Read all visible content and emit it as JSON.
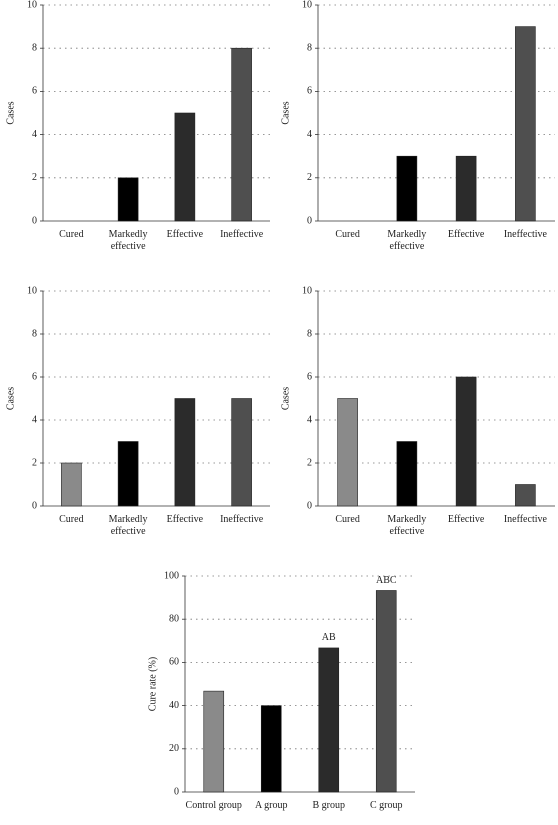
{
  "chart_data": [
    {
      "type": "bar",
      "ylabel": "Cases",
      "categories": [
        "Cured",
        "Markedly effective",
        "Effective",
        "Ineffective"
      ],
      "values": [
        0,
        2,
        5,
        8
      ],
      "colors": [
        "#8a8a8a",
        "#000000",
        "#2b2b2b",
        "#4f4f4f"
      ],
      "ylim": [
        0,
        10
      ],
      "yticks": [
        0,
        2,
        4,
        6,
        8,
        10
      ],
      "grid": true
    },
    {
      "type": "bar",
      "ylabel": "Cases",
      "categories": [
        "Cured",
        "Markedly effective",
        "Effective",
        "Ineffective"
      ],
      "values": [
        0,
        3,
        3,
        9
      ],
      "colors": [
        "#8a8a8a",
        "#000000",
        "#2b2b2b",
        "#4f4f4f"
      ],
      "ylim": [
        0,
        10
      ],
      "yticks": [
        0,
        2,
        4,
        6,
        8,
        10
      ],
      "grid": true
    },
    {
      "type": "bar",
      "ylabel": "Cases",
      "categories": [
        "Cured",
        "Markedly effective",
        "Effective",
        "Ineffective"
      ],
      "values": [
        2,
        3,
        5,
        5
      ],
      "colors": [
        "#8a8a8a",
        "#000000",
        "#2b2b2b",
        "#4f4f4f"
      ],
      "ylim": [
        0,
        10
      ],
      "yticks": [
        0,
        2,
        4,
        6,
        8,
        10
      ],
      "grid": true
    },
    {
      "type": "bar",
      "ylabel": "Cases",
      "categories": [
        "Cured",
        "Markedly effective",
        "Effective",
        "Ineffective"
      ],
      "values": [
        5,
        3,
        6,
        1
      ],
      "colors": [
        "#8a8a8a",
        "#000000",
        "#2b2b2b",
        "#4f4f4f"
      ],
      "ylim": [
        0,
        10
      ],
      "yticks": [
        0,
        2,
        4,
        6,
        8,
        10
      ],
      "grid": true
    },
    {
      "type": "bar",
      "ylabel": "Cure rate (%)",
      "categories": [
        "Control group",
        "A group",
        "B group",
        "C group"
      ],
      "values": [
        46.7,
        40,
        66.7,
        93.3
      ],
      "bar_labels": [
        null,
        null,
        "AB",
        "ABC"
      ],
      "colors": [
        "#8a8a8a",
        "#000000",
        "#2b2b2b",
        "#4f4f4f"
      ],
      "ylim": [
        0,
        100
      ],
      "yticks": [
        0,
        20,
        40,
        60,
        80,
        100
      ],
      "grid": true
    }
  ]
}
